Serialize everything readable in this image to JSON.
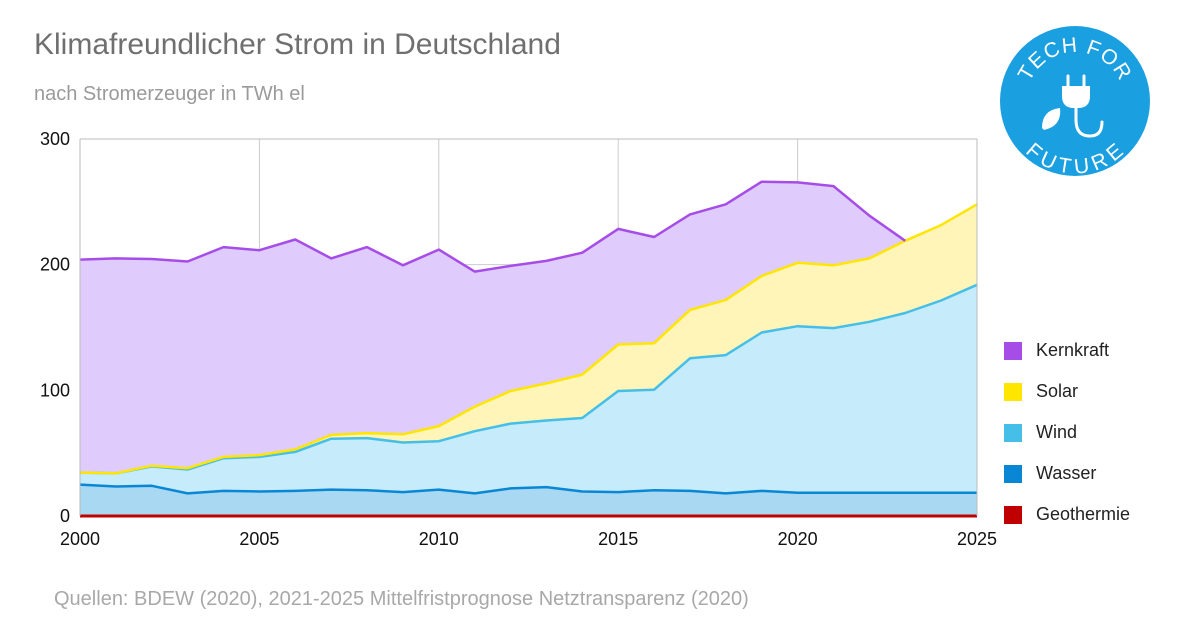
{
  "title": "Klimafreundlicher Strom in Deutschland",
  "subtitle": "nach Stromerzeuger in TWh el",
  "source": "Quellen: BDEW (2020), 2021-2025 Mittelfristprognose Netztransparenz (2020)",
  "logo": {
    "top_text": "TECH FOR",
    "bottom_text": "FUTURE",
    "icon": "plug-leaf-icon",
    "color": "#1a9fe0"
  },
  "chart_data": {
    "type": "area",
    "stacked": true,
    "xlim": [
      2000,
      2025
    ],
    "ylim": [
      0,
      300
    ],
    "x_ticks": [
      2000,
      2005,
      2010,
      2015,
      2020,
      2025
    ],
    "y_ticks": [
      0,
      100,
      200,
      300
    ],
    "grid": true,
    "legend_position": "right",
    "x": [
      2000,
      2001,
      2002,
      2003,
      2004,
      2005,
      2006,
      2007,
      2008,
      2009,
      2010,
      2011,
      2012,
      2013,
      2014,
      2015,
      2016,
      2017,
      2018,
      2019,
      2020,
      2021,
      2022,
      2023,
      2024,
      2025
    ],
    "series": [
      {
        "name": "Geothermie",
        "color": "#c00000",
        "fill": "#c00000",
        "values": [
          0,
          0,
          0,
          0,
          0,
          0,
          0,
          0,
          0,
          0,
          0,
          0,
          0,
          0,
          0,
          0,
          0,
          0,
          0,
          0,
          0,
          0,
          0,
          0,
          0,
          0
        ]
      },
      {
        "name": "Wasser",
        "color": "#0a87d4",
        "fill": "#a9d8f2",
        "values": [
          25,
          23.5,
          24,
          18,
          20,
          19.5,
          20,
          21,
          20.5,
          19,
          21,
          18,
          22,
          23,
          19.5,
          19,
          20.5,
          20,
          18,
          20,
          18.5,
          18.5,
          18.5,
          18.5,
          18.5,
          18.5
        ]
      },
      {
        "name": "Wind",
        "color": "#45bfe8",
        "fill": "#c6ebfa",
        "values": [
          9.5,
          10.5,
          15.5,
          19,
          26,
          27.5,
          31,
          40.5,
          41.5,
          39.5,
          38.5,
          49.5,
          51.5,
          53,
          58.5,
          80.5,
          80,
          105.5,
          110,
          126,
          132.5,
          131,
          136,
          143,
          153,
          165.5
        ]
      },
      {
        "name": "Solar",
        "color": "#ffe600",
        "fill": "#fff5b8",
        "values": [
          0,
          0,
          0.5,
          1,
          1,
          1.5,
          2,
          3,
          4,
          6.5,
          12,
          19.5,
          26,
          29.5,
          34.5,
          37,
          37,
          38.5,
          44,
          45,
          50.5,
          50,
          50.5,
          57.5,
          60,
          64
        ]
      },
      {
        "name": "Kernkraft",
        "color": "#a64de8",
        "fill": "#e0ccfc",
        "values": [
          169.5,
          171,
          164.5,
          164.5,
          167,
          163,
          167,
          140.5,
          148,
          134.5,
          140.5,
          107.5,
          99.5,
          97.5,
          97,
          92,
          84.5,
          76,
          76,
          75,
          64,
          63,
          34,
          0,
          null,
          null
        ]
      }
    ]
  }
}
